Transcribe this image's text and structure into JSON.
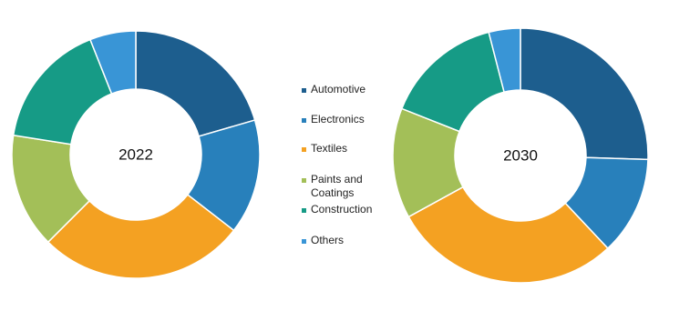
{
  "chart_data": [
    {
      "type": "donut",
      "title": "2022",
      "categories": [
        "Automotive",
        "Electronics",
        "Textiles",
        "Paints and Coatings",
        "Construction",
        "Others"
      ],
      "values": [
        20.5,
        15,
        27,
        15,
        16.5,
        6
      ],
      "colors": [
        "#1d5e8e",
        "#2880bb",
        "#f4a122",
        "#a3bf58",
        "#169b86",
        "#3995d6"
      ]
    },
    {
      "type": "donut",
      "title": "2030",
      "categories": [
        "Automotive",
        "Electronics",
        "Textiles",
        "Paints and Coatings",
        "Construction",
        "Others"
      ],
      "values": [
        25.5,
        12.5,
        29,
        14,
        15,
        4
      ],
      "colors": [
        "#1d5e8e",
        "#2880bb",
        "#f4a122",
        "#a3bf58",
        "#169b86",
        "#3995d6"
      ]
    }
  ]
}
